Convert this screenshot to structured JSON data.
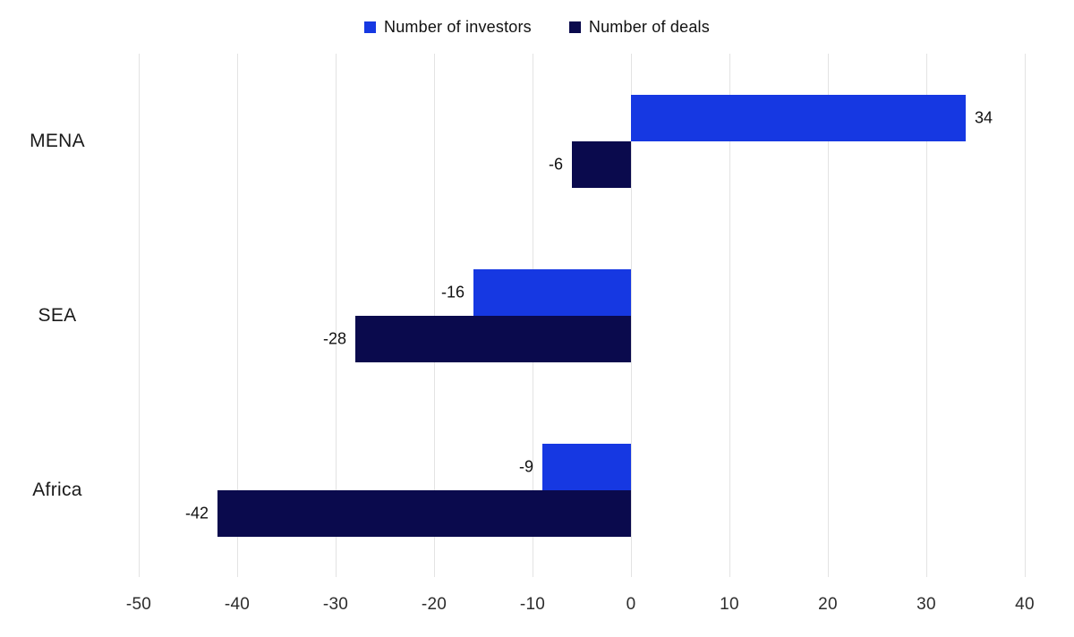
{
  "chart_data": {
    "type": "bar",
    "orientation": "horizontal",
    "title": "",
    "categories": [
      "MENA",
      "SEA",
      "Africa"
    ],
    "series": [
      {
        "name": "Number of investors",
        "color": "#1638e2",
        "values": [
          34,
          -16,
          -9
        ]
      },
      {
        "name": "Number of deals",
        "color": "#0a0a4d",
        "values": [
          -6,
          -28,
          -42
        ]
      }
    ],
    "xlim": [
      -50,
      40
    ],
    "xticks": [
      -50,
      -40,
      -30,
      -20,
      -10,
      0,
      10,
      20,
      30,
      40
    ],
    "grid": true,
    "gridline_color": "#e3e3e3",
    "legend_position": "top",
    "value_labels": true,
    "background": "#ffffff"
  }
}
